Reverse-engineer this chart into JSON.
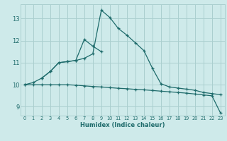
{
  "xlabel": "Humidex (Indice chaleur)",
  "background_color": "#ceeaea",
  "grid_color": "#aacfcf",
  "line_color": "#1e6b6b",
  "xlim": [
    -0.5,
    23.5
  ],
  "ylim": [
    8.6,
    13.65
  ],
  "xticks": [
    0,
    1,
    2,
    3,
    4,
    5,
    6,
    7,
    8,
    9,
    10,
    11,
    12,
    13,
    14,
    15,
    16,
    17,
    18,
    19,
    20,
    21,
    22,
    23
  ],
  "yticks": [
    9,
    10,
    11,
    12,
    13
  ],
  "curve1_x": [
    0,
    1,
    2,
    3,
    4,
    5,
    6,
    7,
    8,
    9,
    10,
    11,
    12,
    13,
    14,
    15,
    16,
    17,
    18,
    19,
    20,
    21,
    22,
    23
  ],
  "curve1_y": [
    10.0,
    10.1,
    10.3,
    10.6,
    11.0,
    11.05,
    11.1,
    11.2,
    11.4,
    13.38,
    13.05,
    12.55,
    12.25,
    11.9,
    11.55,
    10.75,
    10.05,
    9.9,
    9.85,
    9.8,
    9.75,
    9.65,
    9.6,
    9.55
  ],
  "curve2_x": [
    0,
    1,
    2,
    3,
    4,
    5,
    6,
    7,
    8,
    9,
    10,
    11,
    12,
    13,
    14,
    15,
    16,
    17,
    18,
    19,
    20,
    21,
    22,
    23
  ],
  "curve2_y": [
    10.0,
    10.0,
    10.0,
    10.0,
    10.0,
    10.0,
    9.98,
    9.95,
    9.92,
    9.9,
    9.87,
    9.84,
    9.82,
    9.79,
    9.77,
    9.74,
    9.71,
    9.68,
    9.65,
    9.62,
    9.58,
    9.54,
    9.5,
    8.72
  ],
  "curve3_x": [
    2,
    3,
    4,
    5,
    6,
    7,
    8,
    9
  ],
  "curve3_y": [
    10.3,
    10.6,
    11.0,
    11.05,
    11.1,
    12.05,
    11.75,
    11.5
  ]
}
